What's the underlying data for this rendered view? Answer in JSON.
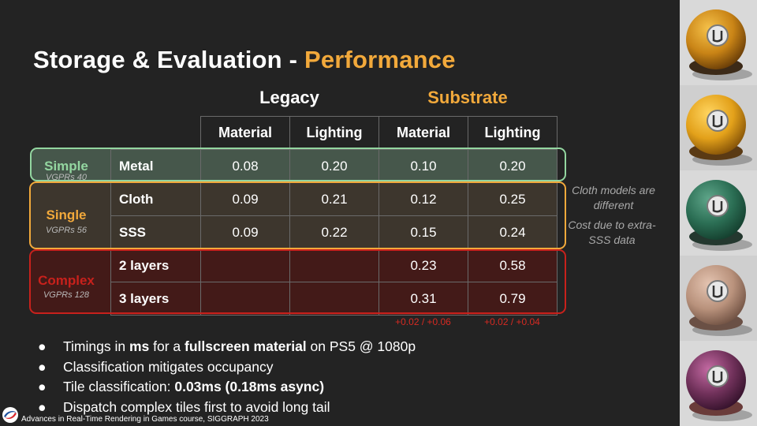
{
  "title": {
    "main": "Storage & Evaluation - ",
    "accent": "Performance"
  },
  "group_headers": {
    "legacy": "Legacy",
    "substrate": "Substrate"
  },
  "table": {
    "columns": [
      "Material",
      "Lighting",
      "Material",
      "Lighting"
    ],
    "rows": [
      {
        "label": "Metal",
        "values": [
          "0.08",
          "0.20",
          "0.10",
          "0.20"
        ]
      },
      {
        "label": "Cloth",
        "values": [
          "0.09",
          "0.21",
          "0.12",
          "0.25"
        ]
      },
      {
        "label": "SSS",
        "values": [
          "0.09",
          "0.22",
          "0.15",
          "0.24"
        ]
      },
      {
        "label": "2 layers",
        "values": [
          "",
          "",
          "0.23",
          "0.58"
        ]
      },
      {
        "label": "3 layers",
        "values": [
          "",
          "",
          "0.31",
          "0.79"
        ]
      }
    ]
  },
  "categories": {
    "simple": {
      "label": "Simple",
      "sub": "VGPRs 40",
      "color": "#93d6a0"
    },
    "single": {
      "label": "Single",
      "sub": "VGPRs 56",
      "color": "#f2a93b"
    },
    "complex": {
      "label": "Complex",
      "sub": "VGPRs 128",
      "color": "#c8211c"
    }
  },
  "notes": {
    "cloth": "Cloth models are different",
    "sss": "Cost due to extra-SSS data"
  },
  "deltas": {
    "material": "+0.02 / +0.06",
    "lighting": "+0.02 / +0.04"
  },
  "bullets": {
    "b1": {
      "p1": "Timings in ",
      "p2": "ms",
      "p3": " for a ",
      "p4": "fullscreen material",
      "p5": " on PS5 @ 1080p"
    },
    "b2": "Classification mitigates occupancy",
    "b3": {
      "p1": "Tile classification: ",
      "p2": "0.03ms (0.18ms async)"
    },
    "b4": "Dispatch complex tiles first to avoid long tail"
  },
  "footer": "Advances in Real-Time Rendering in Games course, SIGGRAPH  2023",
  "colors": {
    "accent": "#f2a93b",
    "simple": "#93d6a0",
    "complex": "#c8211c",
    "delta": "#d62a22"
  },
  "side_images": [
    {
      "name": "gold-metal-material-sphere",
      "base": "#c98416",
      "light": "#f6c24a",
      "dark": "#5e3506",
      "pedestal": "#3c2a18"
    },
    {
      "name": "yellow-plastic-material-sphere",
      "base": "#e3a11a",
      "light": "#ffd560",
      "dark": "#7a4a06",
      "pedestal": "#5a3a14"
    },
    {
      "name": "green-cloth-material-sphere",
      "base": "#2b6e54",
      "light": "#5fa68a",
      "dark": "#123a2a",
      "pedestal": "#24382f"
    },
    {
      "name": "skin-sss-material-sphere",
      "base": "#b9927c",
      "light": "#e4c4b1",
      "dark": "#6a4c3e",
      "pedestal": "#6a5045"
    },
    {
      "name": "purple-layered-material-sphere",
      "base": "#70315a",
      "light": "#c46aa3",
      "dark": "#2f0f27",
      "pedestal": "#6a3c3a"
    }
  ]
}
